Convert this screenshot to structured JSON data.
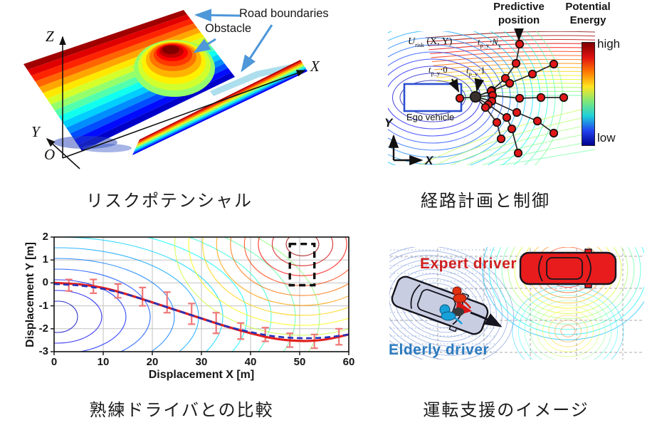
{
  "captions": {
    "risk_potential": "リスクポテンシャル",
    "path_planning": "経路計画と制御",
    "expert_comparison": "熟練ドライバとの比較",
    "driving_support": "運転支援のイメージ"
  },
  "figure1": {
    "annotations": {
      "road_boundaries": "Road boundaries",
      "obstacle": "Obstacle"
    },
    "axes": {
      "x": "X",
      "y": "Y",
      "z": "Z",
      "origin": "O"
    },
    "arrow_color": "#4e97d9"
  },
  "figure2": {
    "headers": {
      "predictive_line1": "Predictive",
      "predictive_line2": "position",
      "potential_line1": "Potential",
      "potential_line2": "Energy"
    },
    "colorbar": {
      "high": "high",
      "low": "low",
      "colors": [
        "#7f0000",
        "#e01010",
        "#ff7a00",
        "#ffe41e",
        "#7fe878",
        "#1fd0d8",
        "#2244f0",
        "#00008f"
      ]
    },
    "labels": {
      "urisk": {
        "main": "U",
        "sub": "risk",
        "rest": " (X, Y)"
      },
      "tpy_ny": {
        "t": "t",
        "tsub": "p_y",
        "dot": "·",
        "val": "N",
        "valsub": "y"
      },
      "tpy_0": {
        "t": "t",
        "tsub": "p_y",
        "dot": "·",
        "val": "0"
      },
      "tpy_1": {
        "t": "t",
        "tsub": "p_y",
        "dot": "·",
        "val": "1"
      },
      "ego_vehicle": "Ego vehicle"
    },
    "axes": {
      "x": "X",
      "y": "Y"
    },
    "trajectories": {
      "dot_color": "#e01818",
      "start": [
        106,
        138
      ],
      "hub": [
        128,
        136
      ],
      "branches": [
        [
          [
            151,
            127
          ],
          [
            170,
            110
          ],
          [
            185,
            89
          ],
          [
            190,
            62
          ]
        ],
        [
          [
            150,
            128
          ],
          [
            176,
            117
          ],
          [
            208,
            104
          ],
          [
            238,
            90
          ]
        ],
        [
          [
            152,
            134
          ],
          [
            190,
            138
          ],
          [
            220,
            137
          ],
          [
            252,
            137
          ]
        ],
        [
          [
            151,
            142
          ],
          [
            186,
            158
          ],
          [
            215,
            170
          ],
          [
            238,
            187
          ]
        ],
        [
          [
            146,
            147
          ],
          [
            172,
            165
          ],
          [
            179,
            181
          ],
          [
            188,
            215
          ]
        ],
        [
          [
            142,
            151
          ],
          [
            158,
            172
          ],
          [
            164,
            195
          ]
        ]
      ]
    }
  },
  "figure4": {
    "labels": {
      "expert_driver": "Expert driver",
      "elderly_driver": "Elderly driver"
    },
    "colors": {
      "expert": "#cf1f1f",
      "elderly": "#2b7bbf"
    }
  },
  "chart_data": {
    "type": "line",
    "title": "",
    "xlabel": "Displacement X [m]",
    "ylabel": "Displacement Y [m]",
    "xlim": [
      0,
      60
    ],
    "ylim": [
      -3,
      2
    ],
    "xticks": [
      0,
      10,
      20,
      30,
      40,
      50,
      60
    ],
    "yticks": [
      2,
      1,
      0,
      -1,
      -2,
      -3
    ],
    "grid": true,
    "series": [
      {
        "name": "driver-trajectory-red-solid",
        "color": "#e02020",
        "style": "solid",
        "x": [
          0,
          5,
          10,
          15,
          20,
          25,
          30,
          35,
          40,
          45,
          50,
          55,
          60
        ],
        "y": [
          0,
          -0.05,
          -0.2,
          -0.5,
          -0.85,
          -1.2,
          -1.55,
          -1.9,
          -2.2,
          -2.45,
          -2.55,
          -2.5,
          -2.25
        ]
      },
      {
        "name": "expert-trajectory-blue-dashed",
        "color": "#2233bb",
        "style": "dashed",
        "x": [
          0,
          5,
          10,
          15,
          20,
          25,
          30,
          35,
          40,
          45,
          50,
          55,
          60
        ],
        "y": [
          -0.05,
          -0.1,
          -0.25,
          -0.5,
          -0.85,
          -1.2,
          -1.55,
          -1.9,
          -2.15,
          -2.35,
          -2.42,
          -2.4,
          -2.25
        ]
      }
    ],
    "error_bars": {
      "color": "#f07878",
      "x": [
        3,
        8,
        13,
        18,
        23,
        28,
        33,
        38,
        43,
        48,
        53,
        58
      ],
      "y": [
        -0.1,
        -0.15,
        -0.35,
        -0.6,
        -0.85,
        -1.35,
        -1.75,
        -2.1,
        -2.25,
        -2.5,
        -2.55,
        -2.35
      ],
      "err": [
        0.25,
        0.3,
        0.3,
        0.4,
        0.45,
        0.45,
        0.45,
        0.35,
        0.3,
        0.3,
        0.3,
        0.35
      ]
    },
    "obstacle_box": {
      "x0": 48,
      "x1": 53,
      "y0": -0.1,
      "y1": 1.7
    }
  }
}
